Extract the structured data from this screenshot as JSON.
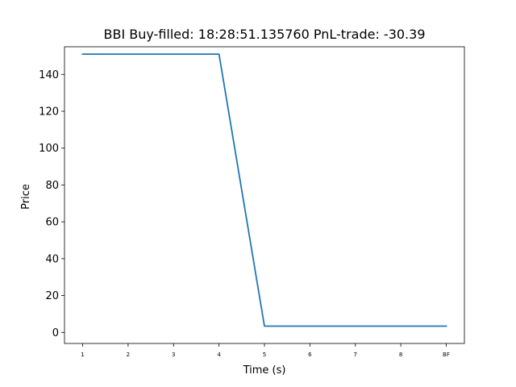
{
  "chart_data": {
    "type": "line",
    "title": "BBI  Buy-filled:  18:28:51.135760  PnL-trade:  -30.39",
    "xlabel": "Time (s)",
    "ylabel": "Price",
    "categories": [
      "1",
      "2",
      "3",
      "4",
      "5",
      "6",
      "7",
      "8",
      "BF"
    ],
    "x": [
      1,
      2,
      3,
      4,
      5,
      6,
      7,
      8,
      9
    ],
    "ylim": [
      -6,
      155
    ],
    "xlim": [
      0.6,
      9.4
    ],
    "yticks": [
      0,
      20,
      40,
      60,
      80,
      100,
      120,
      140
    ],
    "grid": false,
    "series": [
      {
        "values": [
          151,
          151,
          151,
          151,
          3.4,
          3.4,
          3.4,
          3.4,
          3.4
        ],
        "color": "#1f77b4"
      }
    ]
  }
}
